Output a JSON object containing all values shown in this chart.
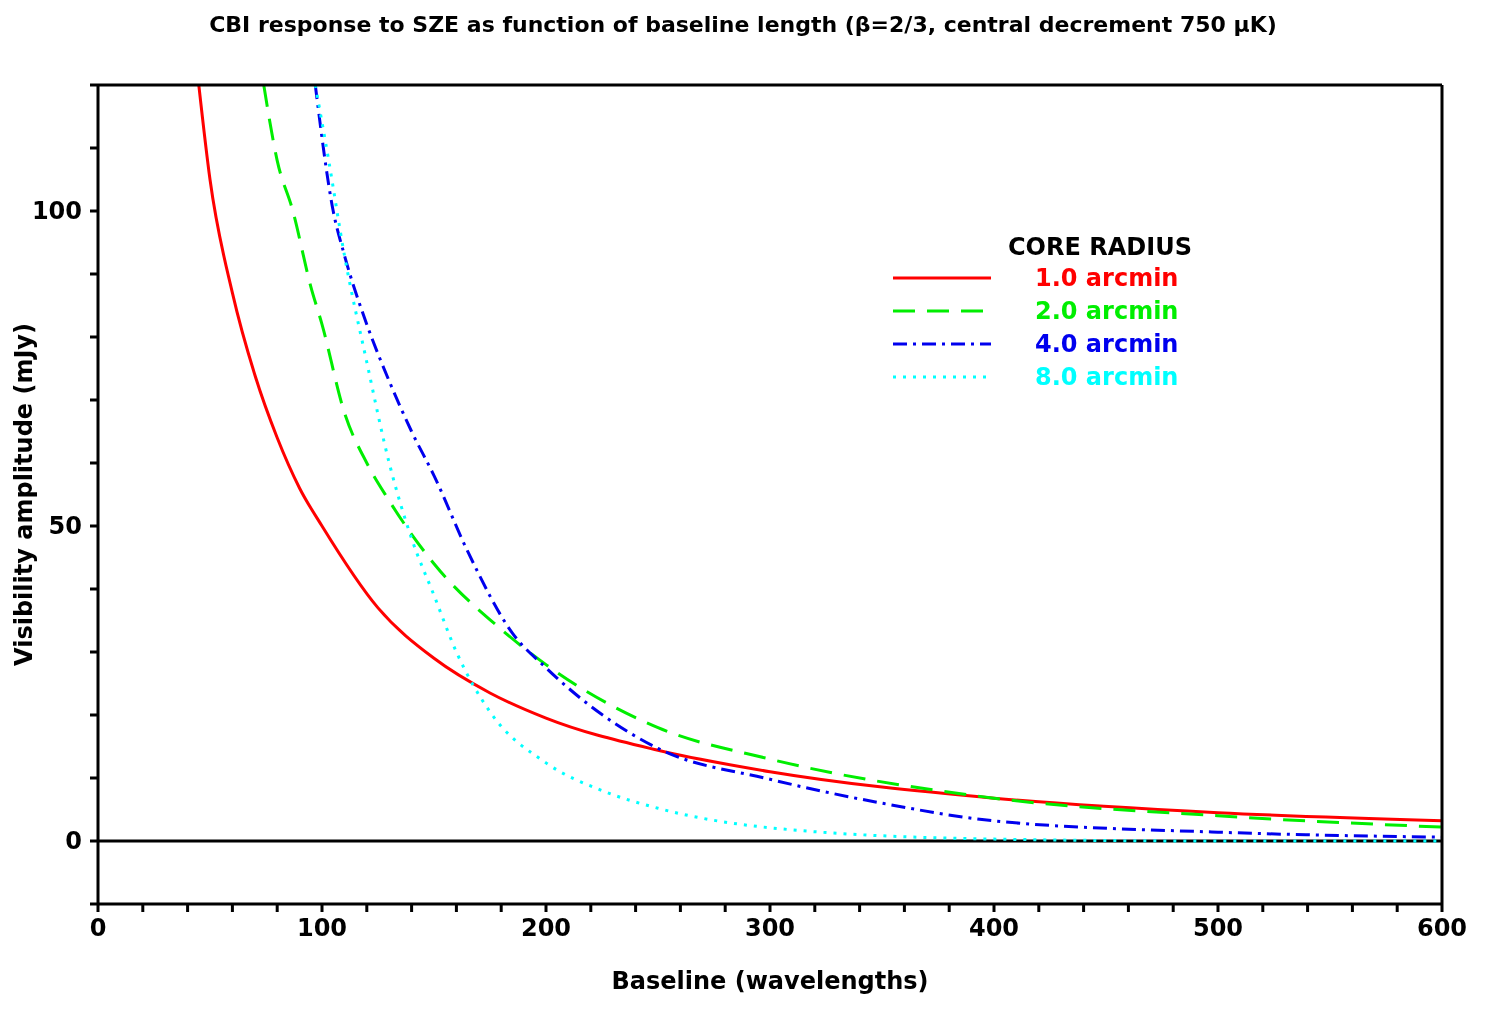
{
  "chart_data": {
    "type": "line",
    "title": "CBI response to SZE as function of baseline length (β=2/3, central decrement 750 μK)",
    "xlabel": "Baseline (wavelengths)",
    "ylabel": "Visibility amplitude (mJy)",
    "legend_title": "CORE RADIUS",
    "legend": "top right",
    "grid": false,
    "marker": "none",
    "xlim": [
      0,
      600
    ],
    "ylim": [
      -10,
      120
    ],
    "xticks": [
      0,
      {
        "value": 20,
        "label": null
      },
      {
        "value": 40,
        "label": null
      },
      {
        "value": 60,
        "label": null
      },
      {
        "value": 80,
        "label": null
      },
      100,
      {
        "value": 120,
        "label": null
      },
      {
        "value": 140,
        "label": null
      },
      {
        "value": 160,
        "label": null
      },
      {
        "value": 180,
        "label": null
      },
      200,
      {
        "value": 220,
        "label": null
      },
      {
        "value": 240,
        "label": null
      },
      {
        "value": 260,
        "label": null
      },
      {
        "value": 280,
        "label": null
      },
      300,
      {
        "value": 320,
        "label": null
      },
      {
        "value": 340,
        "label": null
      },
      {
        "value": 360,
        "label": null
      },
      {
        "value": 380,
        "label": null
      },
      400,
      {
        "value": 420,
        "label": null
      },
      {
        "value": 440,
        "label": null
      },
      {
        "value": 460,
        "label": null
      },
      {
        "value": 480,
        "label": null
      },
      500,
      {
        "value": 520,
        "label": null
      },
      {
        "value": 540,
        "label": null
      },
      {
        "value": 560,
        "label": null
      },
      {
        "value": 580,
        "label": null
      },
      600
    ],
    "yticks": [
      {
        "value": -10,
        "label": null
      },
      0,
      {
        "value": 10,
        "label": null
      },
      {
        "value": 20,
        "label": null
      },
      {
        "value": 30,
        "label": null
      },
      {
        "value": 40,
        "label": null
      },
      50,
      {
        "value": 60,
        "label": null
      },
      {
        "value": 70,
        "label": null
      },
      {
        "value": 80,
        "label": null
      },
      {
        "value": 90,
        "label": null
      },
      100,
      {
        "value": 110,
        "label": null
      },
      {
        "value": 120,
        "label": null
      }
    ],
    "ref_lines": [
      {
        "axis": "y",
        "value": 0,
        "label": null,
        "color": "#000000"
      }
    ],
    "series": [
      {
        "name": "1.0 arcmin",
        "color": "#ff0000",
        "line_style": "solid",
        "x": [
          45,
          50,
          60,
          70,
          80,
          90,
          100,
          125,
          150,
          175,
          200,
          250,
          300,
          400,
          500,
          600
        ],
        "values": [
          120,
          105,
          87,
          74,
          64,
          56,
          50,
          37,
          29,
          23.5,
          19.5,
          14.4,
          11,
          6.8,
          4.5,
          3.2
        ]
      },
      {
        "name": "2.0 arcmin",
        "color": "#00ee00",
        "line_style": "dashed",
        "x": [
          74,
          80,
          87,
          95,
          100,
          110,
          120,
          130,
          150,
          180,
          200,
          250,
          300,
          400,
          500,
          600
        ],
        "values": [
          120,
          108,
          100,
          88,
          82,
          68,
          60,
          54,
          44,
          33.6,
          28,
          18,
          13,
          6.8,
          4,
          2.2
        ]
      },
      {
        "name": "4.0 arcmin",
        "color": "#0000ee",
        "line_style": "dashdot",
        "x": [
          97,
          105,
          110,
          120,
          130,
          140,
          150,
          165,
          185,
          200,
          250,
          300,
          350,
          400,
          500,
          600
        ],
        "values": [
          120,
          100,
          93,
          82,
          73,
          65,
          58,
          46,
          33,
          27.5,
          14.7,
          9.8,
          6,
          3.2,
          1.4,
          0.6
        ]
      },
      {
        "name": "8.0 arcmin",
        "color": "#00ffff",
        "line_style": "dotted",
        "x": [
          97,
          103,
          110,
          120,
          130,
          140,
          150,
          160,
          175,
          200,
          225,
          250,
          300,
          400,
          500,
          600
        ],
        "values": [
          120,
          108,
          93,
          76,
          60,
          48,
          39,
          30,
          20.5,
          12.4,
          8,
          5.2,
          2.1,
          0.3,
          0,
          0
        ]
      }
    ]
  }
}
